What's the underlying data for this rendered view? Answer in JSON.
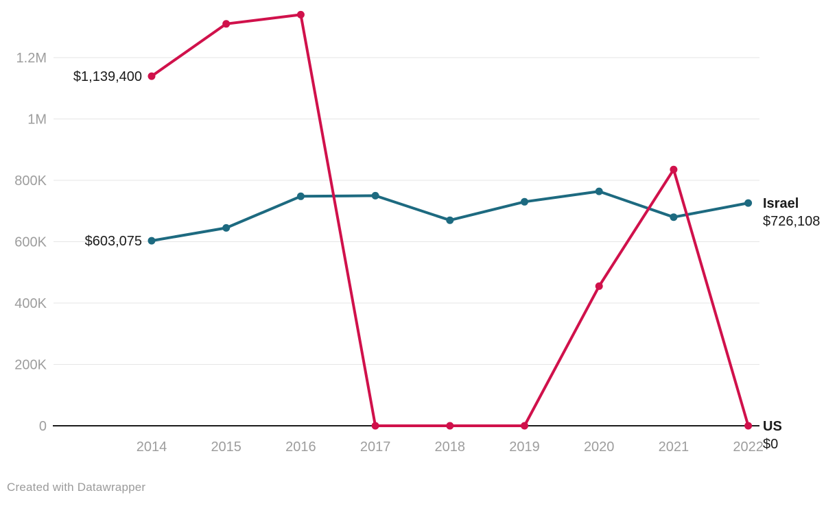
{
  "chart_data": {
    "type": "line",
    "title": "",
    "xlabel": "",
    "ylabel": "",
    "x": [
      "2014",
      "2015",
      "2016",
      "2017",
      "2018",
      "2019",
      "2020",
      "2021",
      "2022"
    ],
    "series": [
      {
        "name": "Israel",
        "color": "#1d6a80",
        "values": [
          603075,
          645000,
          748000,
          750000,
          670000,
          730000,
          764000,
          680000,
          726108
        ],
        "start_label": "$603,075",
        "end_label_name": "Israel",
        "end_label_value": "$726,108"
      },
      {
        "name": "US",
        "color": "#d0114b",
        "values": [
          1139400,
          1310000,
          1340000,
          0,
          0,
          0,
          455000,
          835000,
          0
        ],
        "start_label": "$1,139,400",
        "end_label_name": "US",
        "end_label_value": "$0"
      }
    ],
    "yticks": [
      {
        "value": 0,
        "label": "0"
      },
      {
        "value": 200000,
        "label": "200K"
      },
      {
        "value": 400000,
        "label": "400K"
      },
      {
        "value": 600000,
        "label": "600K"
      },
      {
        "value": 800000,
        "label": "800K"
      },
      {
        "value": 1000000,
        "label": "1M"
      },
      {
        "value": 1200000,
        "label": "1.2M"
      }
    ],
    "ylim": [
      0,
      1200000
    ],
    "grid": true,
    "legend_position": "inline-end-labels"
  },
  "colors": {
    "grid_line": "#e6e6e6",
    "axis_line": "#1a1a1a",
    "tick_text": "#9d9d9d",
    "annotation_text": "#1a1a1a"
  },
  "footer": {
    "credit": "Created with Datawrapper"
  }
}
